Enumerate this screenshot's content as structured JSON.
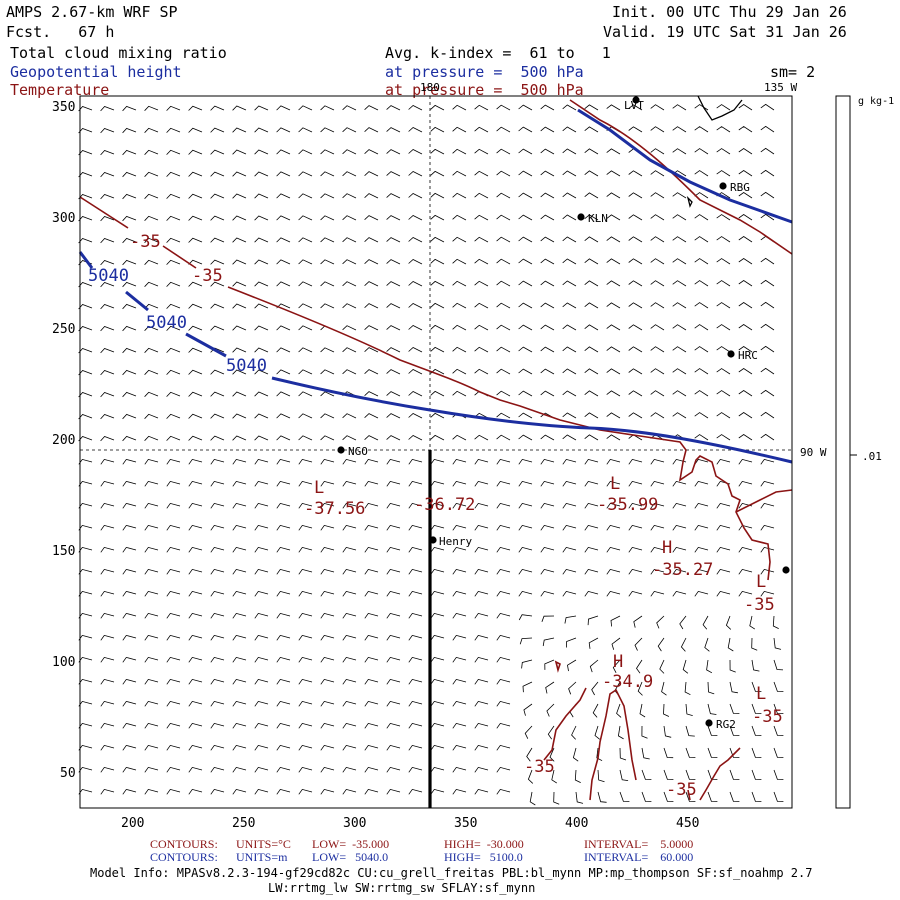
{
  "header": {
    "model": "AMPS 2.67-km WRF SP",
    "fcst": "Fcst.   67 h",
    "init": "Init. 00 UTC Thu 29 Jan 26",
    "valid": "Valid. 19 UTC Sat 31 Jan 26"
  },
  "fields": {
    "field1": "Total cloud mixing ratio",
    "field2": "Geopotential height",
    "field3": "Temperature",
    "avg": "Avg. k-index =  61 to   1",
    "pressure1": "at pressure =  500 hPa",
    "pressure2": "at pressure =  500 hPa",
    "sm": "sm= 2"
  },
  "map": {
    "x_ticks": [
      "200",
      "250",
      "300",
      "350",
      "400",
      "450"
    ],
    "y_ticks": [
      "350",
      "300",
      "250",
      "200",
      "150",
      "100",
      "50"
    ],
    "lon_labels": {
      "top": "180",
      "topright": "135 W",
      "right": "90 W"
    },
    "stations": [
      {
        "name": "LVT"
      },
      {
        "name": "RBG"
      },
      {
        "name": "KLN"
      },
      {
        "name": "HRC"
      },
      {
        "name": "NGO"
      },
      {
        "name": "Henry"
      },
      {
        "name": "RG2"
      }
    ],
    "height_labels": [
      "5040",
      "5040",
      "5040"
    ],
    "temp_labels": [
      "-35",
      "-35",
      "-35",
      "-35",
      "-35",
      "-35"
    ],
    "extrema": [
      {
        "type": "L",
        "value": "-37.56"
      },
      {
        "type": "",
        "value": "-36.72"
      },
      {
        "type": "L",
        "value": "-35.99"
      },
      {
        "type": "H",
        "value": "-35.27"
      },
      {
        "type": "H",
        "value": "-34.9"
      },
      {
        "type": "L",
        "value": ""
      },
      {
        "type": "L",
        "value": ""
      }
    ],
    "colorbar": {
      "unit": "g kg-1",
      "value": ".01"
    }
  },
  "footer": {
    "temp": {
      "contours": "CONTOURS:",
      "units": "UNITS=°C",
      "low": "LOW=  -35.000",
      "high": "HIGH=  -30.000",
      "interval": "INTERVAL=    5.0000"
    },
    "height": {
      "contours": "CONTOURS:",
      "units": "UNITS=m",
      "low": "LOW=   5040.0",
      "high": "HIGH=   5100.0",
      "interval": "INTERVAL=    60.000"
    },
    "model_info": "Model Info: MPASv8.2.3-194-gf29cd82c CU:cu_grell_freitas PBL:bl_mynn MP:mp_thompson SF:sf_noahmp 2.7",
    "model_info2": "LW:rrtmg_lw SW:rrtmg_sw SFLAY:sf_mynn"
  },
  "colors": {
    "height": "#1c2ea0",
    "temperature": "#8b1414",
    "text": "#000000"
  }
}
